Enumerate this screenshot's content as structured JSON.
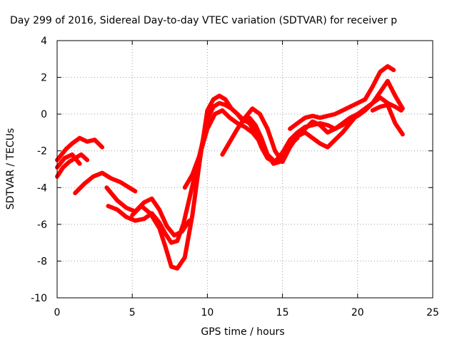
{
  "chart_data": {
    "type": "line",
    "title": "Day 299 of 2016, Sidereal Day-to-day VTEC variation (SDTVAR) for receiver p",
    "xlabel": "GPS time / hours",
    "ylabel": "SDTVAR / TECUs",
    "xlim": [
      0,
      25
    ],
    "ylim": [
      -10,
      4
    ],
    "xticks": [
      "0",
      "5",
      "10",
      "15",
      "20",
      "25"
    ],
    "yticks": [
      "-10",
      "-8",
      "-6",
      "-4",
      "-2",
      "0",
      "2",
      "4"
    ],
    "grid": true,
    "colors": {
      "series": "#ff0000",
      "grid": "#a0a0a0",
      "axis": "#000000"
    },
    "series": [
      {
        "x": [
          0.0,
          0.3,
          0.6,
          1.0,
          1.5,
          2.0,
          2.5,
          3.0
        ],
        "y": [
          -2.5,
          -2.2,
          -1.9,
          -1.6,
          -1.3,
          -1.5,
          -1.4,
          -1.8
        ]
      },
      {
        "x": [
          0.0,
          0.4,
          0.8,
          1.2,
          1.6,
          2.0
        ],
        "y": [
          -3.4,
          -2.9,
          -2.6,
          -2.4,
          -2.2,
          -2.5
        ]
      },
      {
        "x": [
          0.0,
          0.5,
          1.0,
          1.5
        ],
        "y": [
          -2.9,
          -2.4,
          -2.2,
          -2.7
        ]
      },
      {
        "x": [
          1.2,
          1.8,
          2.4,
          3.0,
          3.6,
          4.2,
          4.8,
          5.2
        ],
        "y": [
          -4.3,
          -3.8,
          -3.4,
          -3.2,
          -3.5,
          -3.7,
          -4.0,
          -4.2
        ]
      },
      {
        "x": [
          3.3,
          4.0,
          4.6,
          5.2,
          5.8,
          6.3,
          6.8,
          7.3,
          7.8,
          8.3,
          8.8
        ],
        "y": [
          -4.0,
          -4.7,
          -5.1,
          -5.3,
          -4.8,
          -4.6,
          -5.2,
          -6.1,
          -6.6,
          -6.4,
          -5.8
        ]
      },
      {
        "x": [
          3.4,
          4.0,
          4.6,
          5.2,
          5.8,
          6.3,
          6.8,
          7.2,
          7.6,
          8.0,
          8.4,
          8.8,
          9.2,
          9.6,
          10.0,
          10.4,
          10.8,
          11.2,
          11.6,
          12.0,
          12.4,
          12.8,
          13.2,
          13.6,
          14.0,
          14.4,
          14.8,
          15.2,
          15.6,
          16.0
        ],
        "y": [
          -5.0,
          -5.2,
          -5.6,
          -5.8,
          -5.7,
          -5.4,
          -5.9,
          -6.5,
          -7.0,
          -6.9,
          -6.0,
          -4.6,
          -3.2,
          -1.8,
          -0.3,
          0.4,
          0.6,
          0.5,
          0.3,
          0.0,
          -0.3,
          -0.5,
          -1.0,
          -1.8,
          -2.4,
          -2.6,
          -2.5,
          -2.0,
          -1.6,
          -1.3
        ]
      },
      {
        "x": [
          5.0,
          5.6,
          6.2,
          6.8,
          7.2,
          7.6,
          8.0,
          8.5,
          9.0,
          9.5,
          10.0,
          10.4,
          10.8,
          11.2,
          11.6,
          12.0,
          12.4,
          12.8,
          13.2,
          13.6,
          14.0,
          14.4,
          14.8,
          15.2,
          15.6
        ],
        "y": [
          -5.5,
          -5.0,
          -5.4,
          -6.2,
          -7.2,
          -8.3,
          -8.4,
          -7.8,
          -5.5,
          -2.5,
          0.2,
          0.8,
          1.0,
          0.8,
          0.3,
          0.0,
          -0.4,
          -0.2,
          -0.6,
          -1.3,
          -2.2,
          -2.7,
          -2.6,
          -2.2,
          -1.5
        ]
      },
      {
        "x": [
          8.5,
          9.0,
          9.5,
          10.0,
          10.5,
          11.0,
          11.5,
          12.0,
          12.5,
          13.0,
          13.5,
          14.0,
          14.5,
          15.0,
          15.5,
          16.0,
          16.5,
          17.0,
          17.5,
          18.0,
          18.5,
          19.0,
          19.5,
          20.0,
          20.5,
          21.0,
          21.5,
          22.0,
          22.5,
          22.9
        ],
        "y": [
          -4.0,
          -3.3,
          -2.2,
          -0.8,
          0.0,
          0.2,
          -0.2,
          -0.5,
          -0.7,
          -1.0,
          -1.5,
          -2.2,
          -2.6,
          -2.1,
          -1.4,
          -1.0,
          -0.7,
          -0.6,
          -0.5,
          -0.6,
          -0.8,
          -0.6,
          -0.3,
          -0.1,
          0.2,
          0.6,
          0.9,
          0.6,
          0.4,
          0.2
        ]
      },
      {
        "x": [
          11.0,
          11.5,
          12.0,
          12.5,
          13.0,
          13.5,
          14.0,
          14.5,
          15.0,
          15.5,
          16.0,
          16.5,
          17.0,
          17.5,
          18.0,
          18.5,
          19.0,
          19.5,
          20.0
        ],
        "y": [
          -2.2,
          -1.5,
          -0.8,
          -0.2,
          0.3,
          0.0,
          -0.8,
          -2.0,
          -2.6,
          -1.8,
          -1.2,
          -1.0,
          -1.3,
          -1.6,
          -1.8,
          -1.4,
          -1.0,
          -0.5,
          0.0
        ]
      },
      {
        "x": [
          15.5,
          16.0,
          16.5,
          17.0,
          17.5,
          18.0,
          18.5,
          19.0,
          19.5,
          20.0,
          20.5,
          21.0,
          21.5,
          22.0,
          22.4
        ],
        "y": [
          -0.8,
          -0.5,
          -0.2,
          -0.1,
          -0.2,
          -0.1,
          0.0,
          0.2,
          0.4,
          0.6,
          0.8,
          1.5,
          2.3,
          2.6,
          2.4
        ]
      },
      {
        "x": [
          16.0,
          16.5,
          17.0,
          17.5,
          18.0,
          18.5,
          19.0,
          19.5,
          20.0,
          20.5,
          21.0,
          21.5,
          22.0,
          22.5,
          23.0
        ],
        "y": [
          -1.2,
          -0.8,
          -0.4,
          -0.6,
          -1.0,
          -0.8,
          -0.5,
          -0.2,
          0.0,
          0.3,
          0.6,
          1.2,
          1.8,
          1.0,
          0.3
        ]
      },
      {
        "x": [
          21.0,
          21.5,
          22.0,
          22.5,
          23.0
        ],
        "y": [
          0.2,
          0.4,
          0.5,
          -0.5,
          -1.1
        ]
      }
    ]
  }
}
